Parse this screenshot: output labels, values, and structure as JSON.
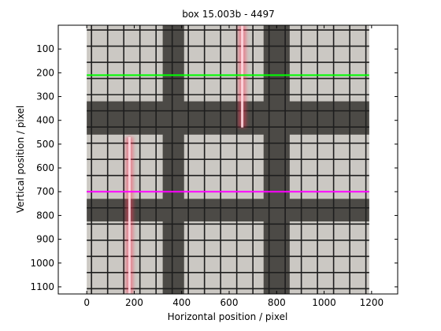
{
  "chart_data": {
    "type": "image",
    "title": "box 15.003b - 4497",
    "xlabel": "Horizontal position / pixel",
    "ylabel": "Vertical position / pixel",
    "xlim": [
      -120,
      1310
    ],
    "ylim": [
      1130,
      0
    ],
    "y_reversed": true,
    "image_extent": {
      "x": [
        0,
        1190
      ],
      "y": [
        0,
        1130
      ]
    },
    "x_ticks": [
      0,
      200,
      400,
      600,
      800,
      1000,
      1200
    ],
    "y_ticks": [
      100,
      200,
      300,
      400,
      500,
      600,
      700,
      800,
      900,
      1000,
      1100
    ],
    "horizontal_lines": [
      {
        "y": 210,
        "color": "#00ff00"
      },
      {
        "y": 700,
        "color": "#ff00ff"
      }
    ],
    "laser_lines": [
      {
        "x": 655,
        "y_start": 0,
        "y_end": 430,
        "color": "#ff3a5a"
      },
      {
        "x": 180,
        "y_start": 470,
        "y_end": 1130,
        "color": "#ff3a5a"
      }
    ],
    "dark_bands": {
      "vertical": [
        [
          320,
          410
        ],
        [
          745,
          855
        ]
      ],
      "horizontal": [
        [
          320,
          460
        ],
        [
          730,
          825
        ]
      ]
    },
    "grid_spacing": 68,
    "grid_line_color": "#1e1e1e",
    "paper_color": "#cbc8c3",
    "band_color": "#4c4a46"
  }
}
